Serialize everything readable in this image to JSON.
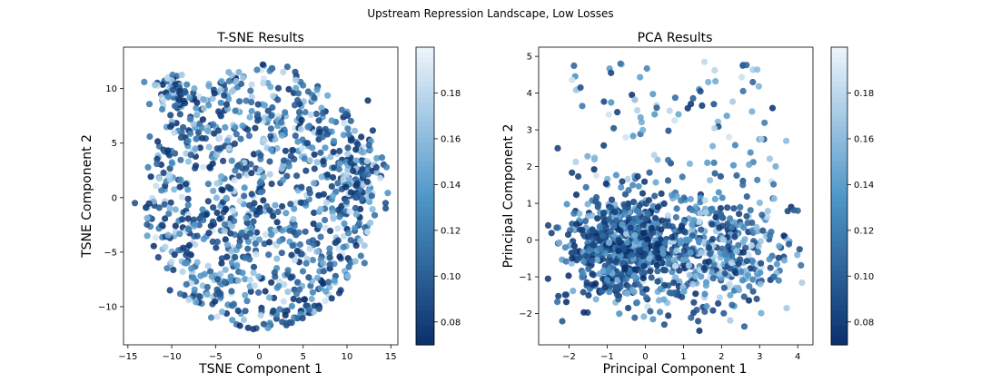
{
  "figure": {
    "suptitle": "Upstream Repression Landscape, Low Losses"
  },
  "colormap": {
    "low": "#0a2f6b",
    "mid": "#4f97c9",
    "high": "#eef5fc",
    "vmin": 0.07,
    "vmax": 0.2
  },
  "chart_data": [
    {
      "type": "scatter",
      "title": "T-SNE Results",
      "xlabel": "TSNE Component 1",
      "ylabel": "TSNE Component 2",
      "xlim": [
        -15.5,
        15.8
      ],
      "ylim": [
        -13.5,
        13.8
      ],
      "xticks": [
        -15,
        -10,
        -5,
        0,
        5,
        10,
        15
      ],
      "yticks": [
        -10,
        -5,
        0,
        5,
        10
      ],
      "colorbar_ticks": [
        0.08,
        0.1,
        0.12,
        0.14,
        0.16,
        0.18
      ],
      "colorbar_ticklabels": [
        "0.08",
        "0.10",
        "0.12",
        "0.14",
        "0.16",
        "0.18"
      ],
      "grid": false,
      "point_count": 1200,
      "points_sample": [
        [
          -14.2,
          -0.5,
          0.09
        ],
        [
          -12.5,
          5.6,
          0.11
        ],
        [
          -9.6,
          10.4,
          0.08
        ],
        [
          -3.5,
          11.5,
          0.15
        ],
        [
          0.4,
          12.2,
          0.07
        ],
        [
          3.2,
          12.0,
          0.1
        ],
        [
          8.5,
          5.2,
          0.13
        ],
        [
          12.5,
          4.8,
          0.1
        ],
        [
          14.5,
          2.8,
          0.12
        ],
        [
          14.4,
          -0.5,
          0.09
        ],
        [
          12.0,
          -6.0,
          0.11
        ],
        [
          6.8,
          -10.2,
          0.1
        ],
        [
          0.5,
          -11.6,
          0.09
        ],
        [
          -5.5,
          -11.0,
          0.12
        ],
        [
          -10.2,
          -8.5,
          0.08
        ],
        [
          -12.8,
          -3.5,
          0.14
        ],
        [
          0.2,
          0.5,
          0.12
        ],
        [
          -4.8,
          4.5,
          0.09
        ],
        [
          4.5,
          -3.2,
          0.11
        ],
        [
          -8.5,
          -6.0,
          0.13
        ]
      ]
    },
    {
      "type": "scatter",
      "title": "PCA Results",
      "xlabel": "Principal Component 1",
      "ylabel": "Principal Component 2",
      "xlim": [
        -2.8,
        4.4
      ],
      "ylim": [
        -2.85,
        5.25
      ],
      "xticks": [
        -2,
        -1,
        0,
        1,
        2,
        3,
        4
      ],
      "yticks": [
        -2,
        -1,
        0,
        1,
        2,
        3,
        4,
        5
      ],
      "colorbar_ticks": [
        0.08,
        0.1,
        0.12,
        0.14,
        0.16,
        0.18
      ],
      "colorbar_ticklabels": [
        "0.08",
        "0.10",
        "0.12",
        "0.14",
        "0.16",
        "0.18"
      ],
      "grid": false,
      "point_count": 1200,
      "points_sample": [
        [
          -1.7,
          4.15,
          0.09
        ],
        [
          -0.9,
          4.55,
          0.08
        ],
        [
          -0.65,
          4.8,
          0.11
        ],
        [
          0.3,
          3.6,
          0.1
        ],
        [
          1.55,
          4.85,
          0.18
        ],
        [
          1.65,
          4.3,
          0.15
        ],
        [
          1.8,
          3.7,
          0.09
        ],
        [
          2.8,
          3.5,
          0.15
        ],
        [
          3.7,
          2.7,
          0.16
        ],
        [
          -2.3,
          2.5,
          0.08
        ],
        [
          -2.55,
          0.4,
          0.08
        ],
        [
          4.0,
          0.8,
          0.1
        ],
        [
          4.05,
          -0.25,
          0.09
        ],
        [
          3.5,
          -1.1,
          0.12
        ],
        [
          2.6,
          -2.35,
          0.1
        ],
        [
          0.5,
          -2.3,
          0.09
        ],
        [
          -0.45,
          -1.85,
          0.08
        ],
        [
          -1.15,
          -1.4,
          0.1
        ],
        [
          -0.7,
          0.0,
          0.08
        ],
        [
          0.6,
          -0.5,
          0.12
        ]
      ]
    }
  ]
}
